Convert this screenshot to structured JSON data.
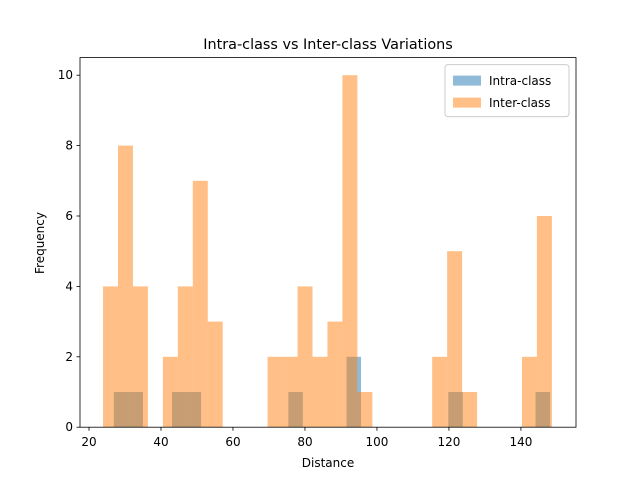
{
  "chart_data": {
    "type": "histogram",
    "title": "Intra-class vs Inter-class Variations",
    "x_label": "Distance",
    "y_label": "Frequency",
    "xlim": [
      17.5,
      155.3
    ],
    "xticks": [
      20,
      40,
      60,
      80,
      100,
      120,
      140
    ],
    "ylim": [
      0,
      10.5
    ],
    "yticks": [
      0,
      2,
      4,
      6,
      8,
      10
    ],
    "grid": false,
    "legend": "upper right",
    "opacity": 0.5,
    "series": [
      {
        "name": "Intra-class",
        "color": "#1f77b4",
        "bins": [
          26.9,
          30.94,
          34.98,
          39.02,
          43.06,
          47.1,
          51.14,
          55.18,
          59.22,
          63.26,
          67.3,
          71.34,
          75.38,
          79.42,
          83.46,
          87.5,
          91.54,
          95.58,
          99.62,
          103.66,
          107.7,
          111.74,
          115.78,
          119.82,
          123.86,
          127.9,
          131.94,
          135.98,
          140.02,
          144.06,
          148.1
        ],
        "values": [
          1,
          1,
          0,
          0,
          1,
          1,
          0,
          0,
          0,
          0,
          0,
          0,
          1,
          0,
          0,
          0,
          2,
          0,
          0,
          0,
          0,
          0,
          0,
          1,
          0,
          0,
          0,
          0,
          0,
          1
        ]
      },
      {
        "name": "Inter-class",
        "color": "#ff7f0e",
        "bins": [
          23.9,
          28.06,
          32.21,
          36.37,
          40.53,
          44.68,
          48.84,
          53.0,
          57.15,
          61.31,
          65.47,
          69.62,
          73.78,
          77.94,
          82.09,
          86.25,
          90.41,
          94.56,
          98.72,
          102.88,
          107.03,
          111.19,
          115.35,
          119.5,
          123.66,
          127.82,
          131.97,
          136.13,
          140.29,
          144.44,
          148.6
        ],
        "values": [
          4,
          8,
          4,
          0,
          2,
          4,
          7,
          3,
          0,
          0,
          0,
          2,
          2,
          4,
          2,
          3,
          10,
          1,
          0,
          0,
          0,
          0,
          2,
          5,
          1,
          0,
          0,
          0,
          2,
          6
        ]
      }
    ]
  }
}
